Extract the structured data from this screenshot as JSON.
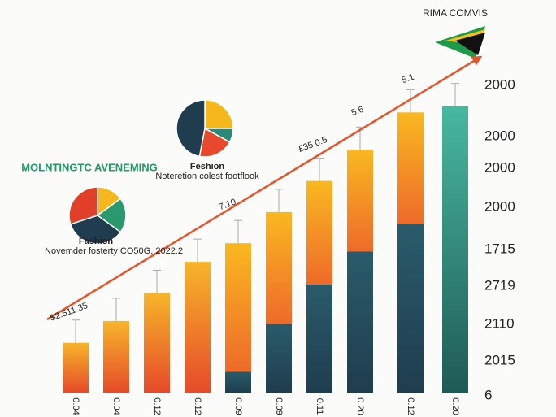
{
  "chart_data": [
    {
      "type": "bar",
      "title": "RIMA COMVIS",
      "subtitle": "MOLNTINGTC AVENEMING",
      "categories": [
        "0.04",
        "0.04",
        "0.12",
        "0.12",
        "0.09",
        "0.09",
        "0.11",
        "0.20",
        "0.12",
        "0.20"
      ],
      "values": [
        16,
        23,
        32,
        42,
        48,
        58,
        68,
        78,
        90,
        92
      ],
      "ylim": [
        0,
        100
      ],
      "side_labels": [
        "2000",
        "2000",
        "2000",
        "2000",
        "1715",
        "2719",
        "2110",
        "2015",
        "6"
      ],
      "annotations": [
        "$2.511.35",
        "7.10",
        "£35 0.5",
        "5.6",
        "5.1"
      ],
      "trend_color": "#e8532a"
    },
    {
      "type": "pie",
      "title": "Feshion",
      "subtitle": "Noteretion colest footflook",
      "values": [
        25,
        8,
        20,
        47
      ],
      "colors": [
        "#f4b81c",
        "#2a8a78",
        "#e8482c",
        "#1f3d4f"
      ]
    },
    {
      "type": "pie",
      "title": "Fashion",
      "subtitle": "Novemder fosterty CO50G. 2022.2",
      "values": [
        15,
        20,
        35,
        30
      ],
      "colors": [
        "#f4b81c",
        "#2a9a6e",
        "#1f3d4f",
        "#e0402a"
      ]
    }
  ]
}
